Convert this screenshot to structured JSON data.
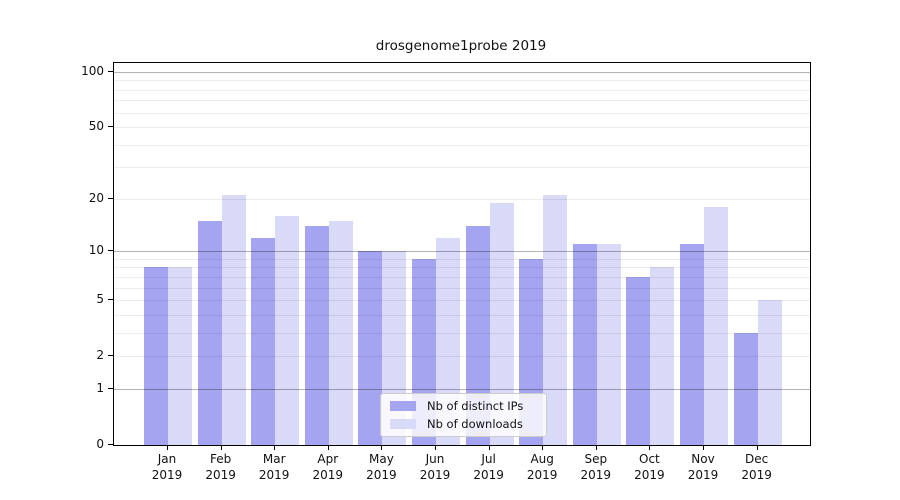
{
  "title": "drosgenome1probe 2019",
  "colors": {
    "ips_bar": "#a4a4f0",
    "downloads_bar": "#d9d9f8",
    "frame": "#000000",
    "grid_minor": "#ededed",
    "grid_major": "#b3b3b3",
    "legend_border": "#cccccc"
  },
  "legend": {
    "items": [
      {
        "label": "Nb of distinct IPs",
        "series_key": "ips"
      },
      {
        "label": "Nb of downloads",
        "series_key": "downloads"
      }
    ]
  },
  "y_axis": {
    "tick_values": [
      0,
      1,
      2,
      5,
      10,
      20,
      50,
      100
    ],
    "major_grid_values": [
      1,
      10,
      100
    ],
    "minor_grid_values": [
      2,
      3,
      4,
      5,
      6,
      7,
      8,
      9,
      20,
      30,
      40,
      50,
      60,
      70,
      80,
      90
    ]
  },
  "x_axis": {
    "months": [
      "Jan",
      "Feb",
      "Mar",
      "Apr",
      "May",
      "Jun",
      "Jul",
      "Aug",
      "Sep",
      "Oct",
      "Nov",
      "Dec"
    ],
    "year": "2019"
  },
  "chart_data": {
    "type": "bar",
    "title": "drosgenome1probe 2019",
    "categories": [
      "Jan 2019",
      "Feb 2019",
      "Mar 2019",
      "Apr 2019",
      "May 2019",
      "Jun 2019",
      "Jul 2019",
      "Aug 2019",
      "Sep 2019",
      "Oct 2019",
      "Nov 2019",
      "Dec 2019"
    ],
    "series": [
      {
        "name": "Nb of distinct IPs",
        "color": "#a4a4f0",
        "values": [
          8,
          15,
          12,
          14,
          10,
          9,
          14,
          9,
          11,
          7,
          11,
          3
        ]
      },
      {
        "name": "Nb of downloads",
        "color": "#d9d9f8",
        "values": [
          8,
          21,
          16,
          15,
          10,
          12,
          19,
          21,
          11,
          8,
          18,
          5
        ]
      }
    ],
    "xlabel": "",
    "ylabel": "",
    "yscale": "log1p",
    "ylim": [
      0,
      100
    ],
    "yticks": [
      0,
      1,
      2,
      5,
      10,
      20,
      50,
      100
    ],
    "grid": "on",
    "grid_over_bars": true,
    "legend_position": "inside-bottom-center"
  }
}
